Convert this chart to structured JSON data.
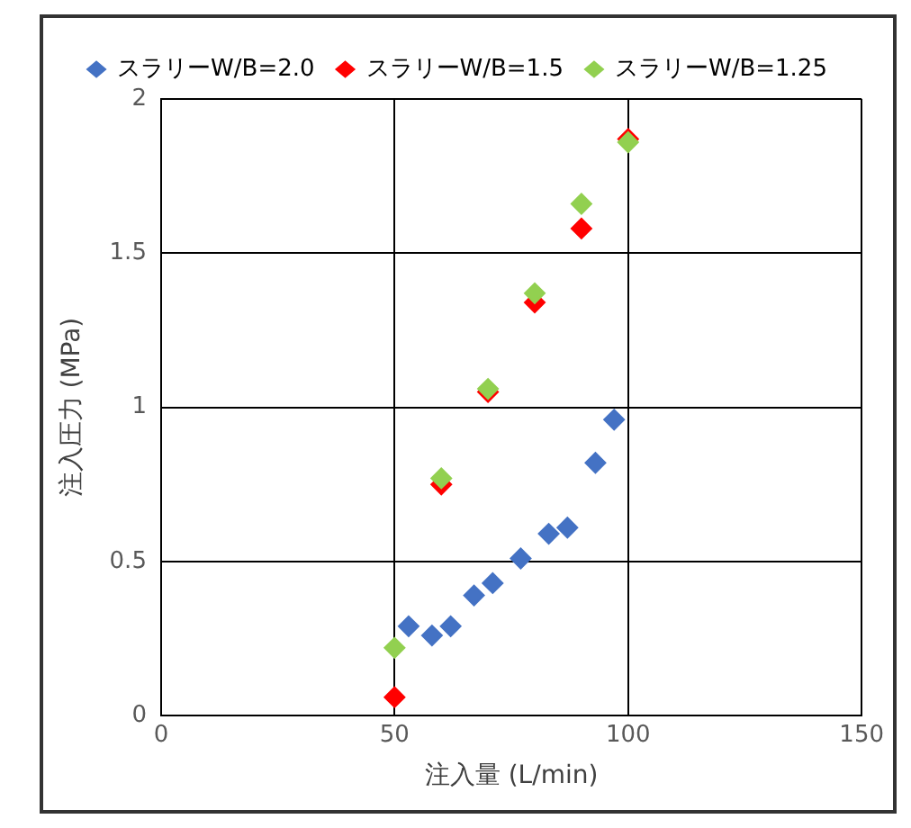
{
  "chart_data": {
    "type": "scatter",
    "xlabel": "注入量 (L/min)",
    "ylabel": "注入圧力 (MPa)",
    "xlim": [
      0,
      150
    ],
    "xticks": [
      0,
      50,
      100,
      150
    ],
    "ylim": [
      0,
      2
    ],
    "yticks": [
      0,
      0.5,
      1,
      1.5,
      2
    ],
    "grid": true,
    "legend": "top",
    "marker": "diamond",
    "series": [
      {
        "name": "スラリーW/B=2.0",
        "color": "#4472c4",
        "x": [
          53,
          58,
          62,
          67,
          71,
          77,
          83,
          87,
          93,
          97
        ],
        "values": [
          0.29,
          0.26,
          0.29,
          0.39,
          0.43,
          0.51,
          0.59,
          0.61,
          0.82,
          0.96
        ]
      },
      {
        "name": "スラリーW/B=1.5",
        "color": "#ff0000",
        "x": [
          50,
          60,
          70,
          80,
          90,
          100
        ],
        "values": [
          0.06,
          0.75,
          1.05,
          1.34,
          1.58,
          1.87
        ]
      },
      {
        "name": "スラリーW/B=1.25",
        "color": "#92d050",
        "x": [
          50,
          60,
          70,
          80,
          90,
          100
        ],
        "values": [
          0.22,
          0.77,
          1.06,
          1.37,
          1.66,
          1.86
        ]
      }
    ]
  }
}
